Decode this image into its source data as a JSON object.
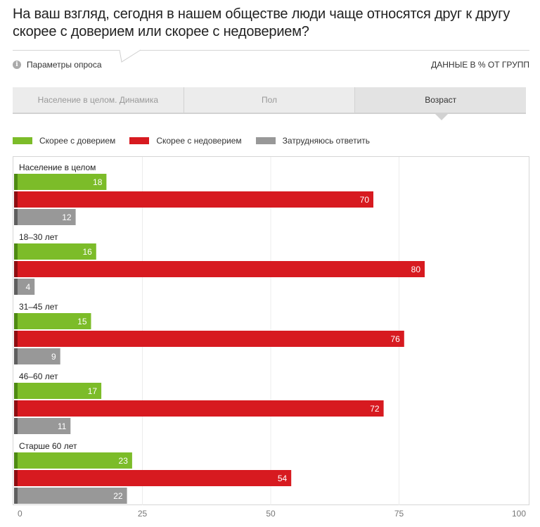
{
  "title": "На ваш взгляд, сегодня в нашем обществе люди чаще относятся друг к другу скорее с доверием или скорее с недоверием?",
  "params_label": "Параметры опроса",
  "data_note": "ДАННЫЕ В % ОТ ГРУПП",
  "info_icon": "info-icon",
  "tabs": [
    {
      "label": "Население в целом. Динамика",
      "active": false
    },
    {
      "label": "Пол",
      "active": false
    },
    {
      "label": "Возраст",
      "active": true
    }
  ],
  "legend": [
    {
      "label": "Скорее с доверием",
      "color": "#7cbc29"
    },
    {
      "label": "Скорее с недоверием",
      "color": "#d71a20"
    },
    {
      "label": "Затрудняюсь ответить",
      "color": "#989898"
    }
  ],
  "chart_data": {
    "type": "bar",
    "orientation": "horizontal",
    "categories": [
      "Население в целом",
      "18–30 лет",
      "31–45 лет",
      "46–60 лет",
      "Старше 60 лет"
    ],
    "series": [
      {
        "name": "Скорее с доверием",
        "color": "#7cbc29",
        "values": [
          18,
          16,
          15,
          17,
          23
        ]
      },
      {
        "name": "Скорее с недоверием",
        "color": "#d71a20",
        "values": [
          70,
          80,
          76,
          72,
          54
        ]
      },
      {
        "name": "Затрудняюсь ответить",
        "color": "#989898",
        "values": [
          12,
          4,
          9,
          11,
          22
        ]
      }
    ],
    "xlim": [
      0,
      100
    ],
    "xticks": [
      0,
      25,
      50,
      75,
      100
    ],
    "grid": true,
    "legend_position": "top-left"
  }
}
